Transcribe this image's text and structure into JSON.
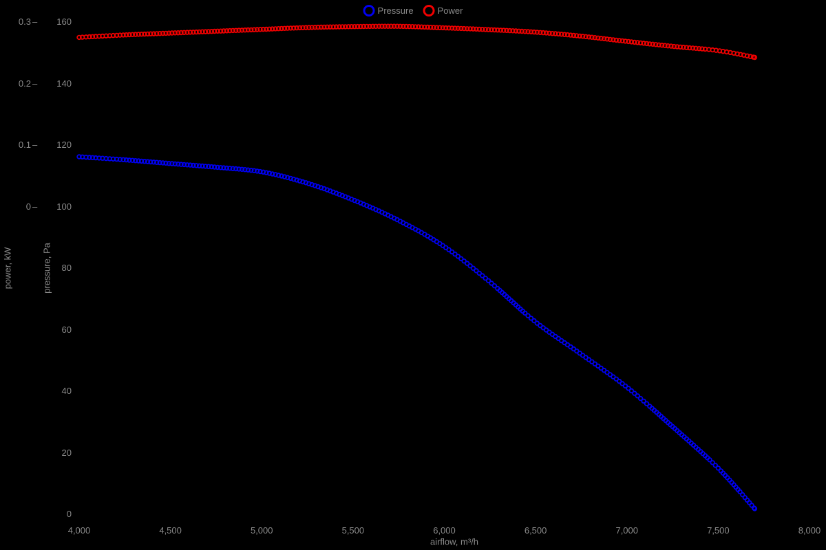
{
  "chart_data": {
    "type": "scatter",
    "marker_style": "open-circle",
    "background_color": "#000000",
    "text_color": "#8a8a8a",
    "grid": false,
    "legend_position": "top-center",
    "x_title": "airflow, m³/h",
    "x_range": [
      4000,
      8000
    ],
    "x_tick_values": [
      4000,
      4500,
      5000,
      5500,
      6000,
      6500,
      7000,
      7500,
      8000
    ],
    "x_tick_labels": [
      "4,000",
      "4,500",
      "5,000",
      "5,500",
      "6,000",
      "6,500",
      "7,000",
      "7,500",
      "8,000"
    ],
    "axes_left": [
      {
        "id": "power",
        "title": "power, kW",
        "range": [
          0,
          0.3
        ],
        "tick_values": [
          0,
          0.1,
          0.2,
          0.3
        ],
        "tick_labels": [
          "0",
          "0.1",
          "0.2",
          "0.3"
        ],
        "tick_dash": "–"
      },
      {
        "id": "pressure",
        "title": "pressure, Pa",
        "range": [
          0,
          160
        ],
        "tick_values": [
          0,
          20,
          40,
          60,
          80,
          100,
          120,
          140,
          160
        ],
        "tick_labels": [
          "0",
          "20",
          "40",
          "60",
          "80",
          "100",
          "120",
          "140",
          "160"
        ],
        "tick_dash": ""
      }
    ],
    "series": [
      {
        "name": "Pressure",
        "axis": "pressure",
        "unit": "Pa",
        "color": "#0000f0",
        "x": [
          4000,
          4250,
          4500,
          4750,
          5000,
          5250,
          5500,
          5750,
          6000,
          6250,
          6500,
          6750,
          7000,
          7250,
          7500,
          7700
        ],
        "y": [
          116.2,
          115.2,
          114.0,
          112.8,
          111.3,
          107.6,
          102.2,
          95.5,
          87.0,
          75.5,
          62.5,
          52.0,
          41.3,
          28.5,
          15.0,
          1.8
        ]
      },
      {
        "name": "Power",
        "axis": "power",
        "unit": "kW",
        "color": "#f00000",
        "x": [
          4000,
          4250,
          4500,
          4750,
          5000,
          5250,
          5500,
          5750,
          6000,
          6250,
          6500,
          6750,
          7000,
          7250,
          7500,
          7700
        ],
        "y": [
          0.275,
          0.279,
          0.282,
          0.285,
          0.288,
          0.291,
          0.2925,
          0.293,
          0.2905,
          0.2875,
          0.2835,
          0.277,
          0.2685,
          0.2605,
          0.2535,
          0.2425
        ]
      }
    ]
  }
}
